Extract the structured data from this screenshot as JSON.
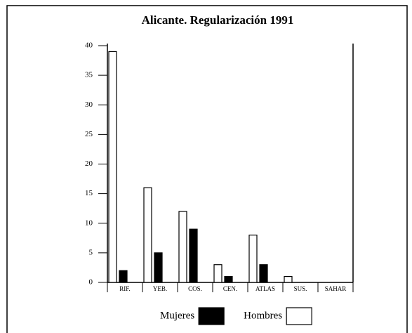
{
  "chart_data": {
    "type": "bar",
    "title": "Alicante. Regularización 1991",
    "categories": [
      "RIF.",
      "YEB.",
      "COS.",
      "CEN.",
      "ATLAS",
      "SUS.",
      "SAHAR"
    ],
    "series": [
      {
        "name": "Mujeres",
        "color": "#000000",
        "values": [
          2,
          5,
          9,
          1,
          3,
          0,
          0
        ]
      },
      {
        "name": "Hombres",
        "color": "#ffffff",
        "values": [
          39,
          16,
          12,
          3,
          8,
          1,
          0
        ]
      }
    ],
    "ylim": [
      0,
      40
    ],
    "yticks": [
      0,
      5,
      10,
      15,
      20,
      25,
      30,
      35,
      40
    ],
    "grid": false
  }
}
